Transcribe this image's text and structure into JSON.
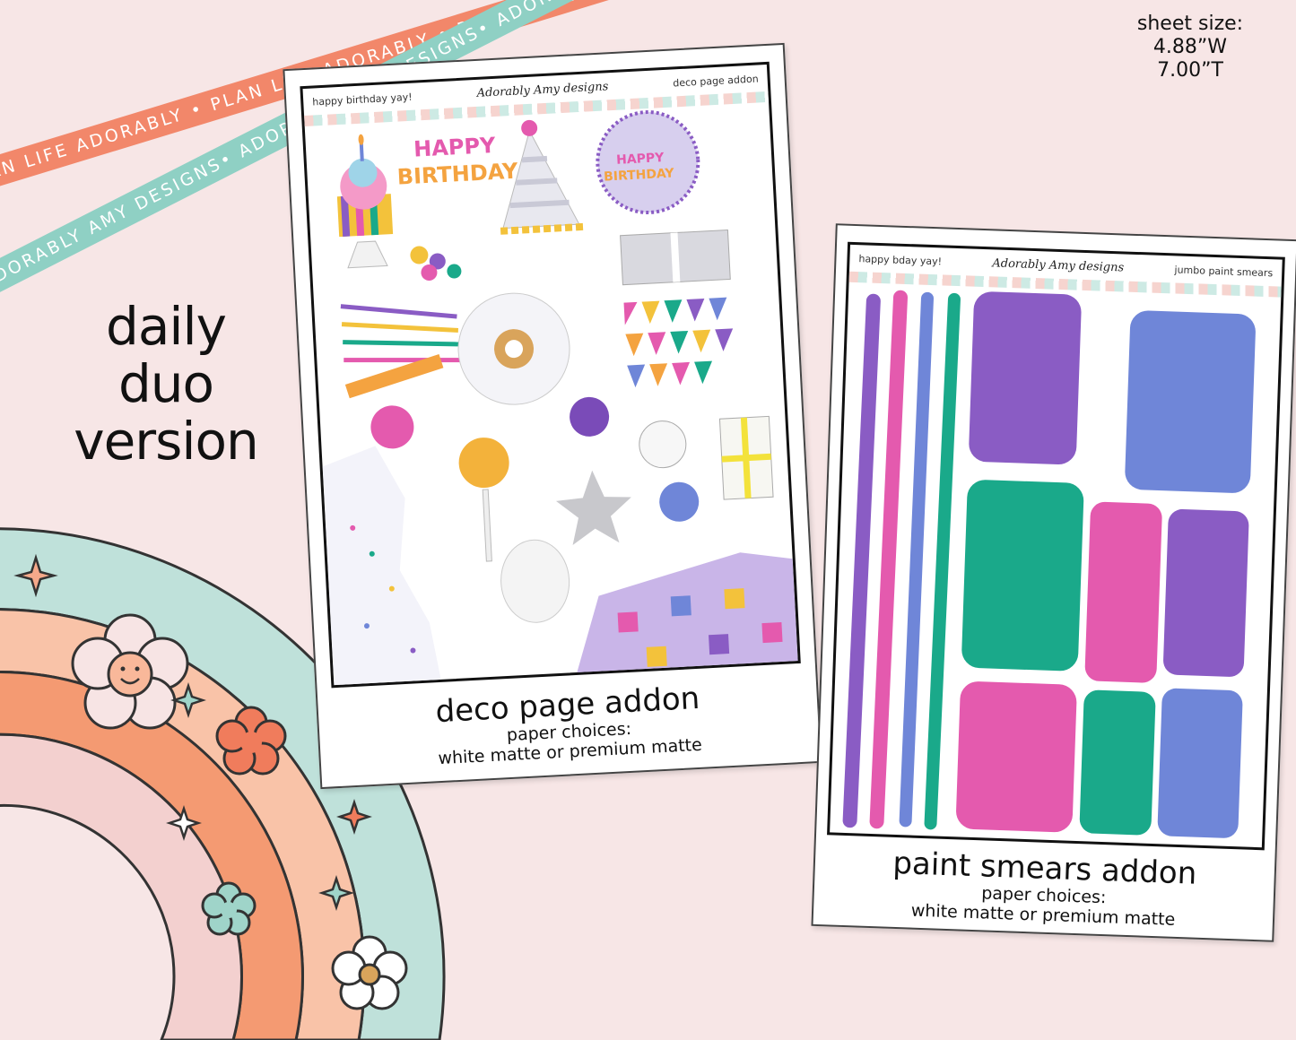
{
  "ribbons": {
    "orange_text": "PLAN LIFE ADORABLY • PLAN LIFE ADORABLY • PLAN LIFE ADORABLY",
    "teal_text": "ADORABLY AMY DESIGNS• ADORABLY AMY DESIGNS• ADORABLY AMY DESIGNS• AD"
  },
  "sheet_size": {
    "label": "sheet size:",
    "width": "4.88”W",
    "height": "7.00”T"
  },
  "title": {
    "line1": "daily",
    "line2": "duo",
    "line3": "version"
  },
  "deco_sheet": {
    "header_left": "happy birthday yay!",
    "brand": "Adorably Amy designs",
    "header_right": "deco page addon",
    "sticker_text_1": "HAPPY",
    "sticker_text_2": "BIRTHDAY",
    "caption_title": "deco page addon",
    "caption_sub1": "paper choices:",
    "caption_sub2": "white matte or premium matte"
  },
  "paint_sheet": {
    "header_left": "happy bday yay!",
    "brand": "Adorably Amy designs",
    "header_right": "jumbo paint smears",
    "caption_title": "paint smears addon",
    "caption_sub1": "paper choices:",
    "caption_sub2": "white matte or premium matte"
  },
  "colors": {
    "background": "#f7e6e6",
    "ribbon_orange": "#f2876a",
    "ribbon_teal": "#8fd0c4",
    "purple": "#8a5cc4",
    "pink": "#e45aae",
    "blue": "#6f86d8",
    "teal": "#1aa98a"
  }
}
